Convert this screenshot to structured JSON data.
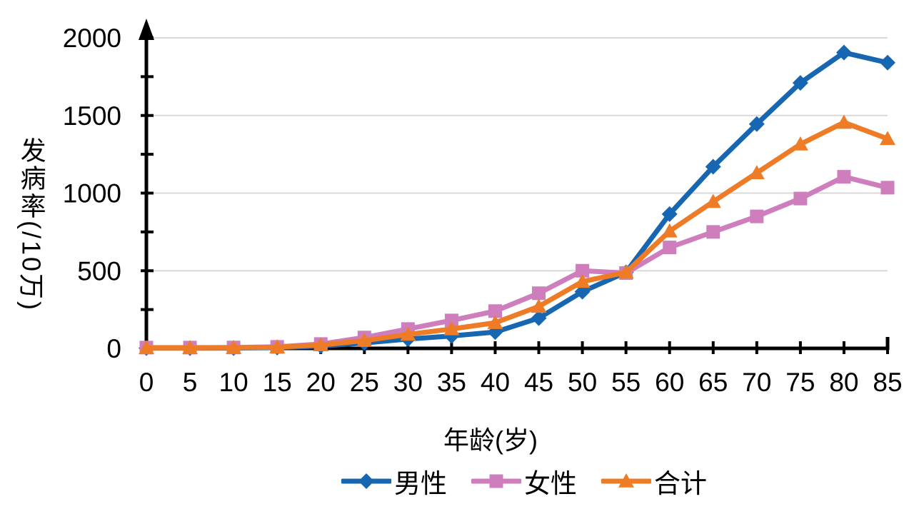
{
  "chart_data": {
    "type": "line",
    "title": "",
    "xlabel": "年龄(岁)",
    "ylabel": "发病率(/10万)",
    "ylabel_upright_part": "发病率",
    "ylabel_rotated_part": "(/10万)",
    "x": [
      0,
      5,
      10,
      15,
      20,
      25,
      30,
      35,
      40,
      45,
      50,
      55,
      60,
      65,
      70,
      75,
      80,
      85
    ],
    "ylim": [
      0,
      2000
    ],
    "yticks_major": [
      0,
      500,
      1000,
      1500,
      2000
    ],
    "ytick_minor_step": 250,
    "grid": "horizontal-major-on",
    "legend_position": "bottom-center",
    "series": [
      {
        "id": "male",
        "name": "男性",
        "marker": "diamond",
        "color": "#1766b2",
        "values": [
          2,
          2,
          2,
          5,
          15,
          35,
          60,
          80,
          105,
          195,
          365,
          490,
          865,
          1170,
          1445,
          1710,
          1905,
          1840
        ]
      },
      {
        "id": "female",
        "name": "女性",
        "marker": "square",
        "color": "#cf7ebd",
        "values": [
          5,
          5,
          6,
          10,
          28,
          70,
          125,
          180,
          240,
          355,
          500,
          485,
          650,
          750,
          850,
          965,
          1105,
          1035
        ]
      },
      {
        "id": "total",
        "name": "合计",
        "marker": "triangle",
        "color": "#ee7c26",
        "values": [
          3,
          3,
          4,
          8,
          22,
          50,
          90,
          125,
          165,
          270,
          430,
          490,
          755,
          945,
          1130,
          1315,
          1455,
          1350
        ]
      }
    ],
    "colors": {
      "gridline": "#d9d9d9",
      "axis": "#000000",
      "text": "#000000",
      "background": "#ffffff"
    }
  }
}
